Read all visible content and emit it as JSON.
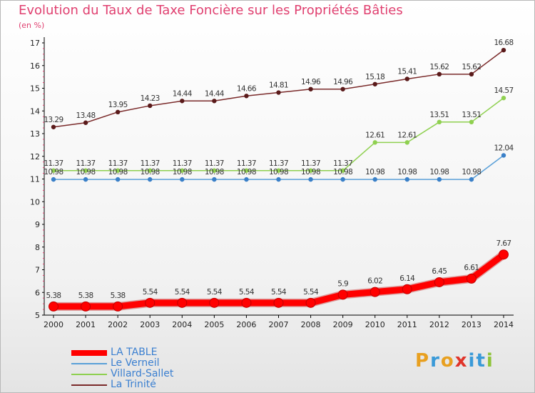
{
  "chart_data": {
    "type": "line",
    "title": "Evolution du Taux de Taxe Foncière sur les Propriétés Bâties",
    "subtitle": "(en %)",
    "xlabel": "",
    "ylabel": "(en %)",
    "categories": [
      "2000",
      "2001",
      "2002",
      "2003",
      "2004",
      "2005",
      "2006",
      "2007",
      "2008",
      "2009",
      "2010",
      "2011",
      "2012",
      "2013",
      "2014"
    ],
    "ylim": [
      5,
      17
    ],
    "yticks": [
      "5",
      "6",
      "7",
      "8",
      "9",
      "10",
      "11",
      "12",
      "13",
      "14",
      "15",
      "16",
      "17"
    ],
    "legend_position": "bottom-left",
    "series": [
      {
        "name": "LA TABLE",
        "color": "#ff0000",
        "values": [
          5.38,
          5.38,
          5.38,
          5.54,
          5.54,
          5.54,
          5.54,
          5.54,
          5.54,
          5.9,
          6.02,
          6.14,
          6.45,
          6.61,
          7.67
        ],
        "labels": [
          "5.38",
          "5.38",
          "5.38",
          "5.54",
          "5.54",
          "5.54",
          "5.54",
          "5.54",
          "5.54",
          "5.9",
          "6.02",
          "6.14",
          "6.45",
          "6.61",
          "7.67"
        ]
      },
      {
        "name": "Le Verneil",
        "color": "#5aa0d8",
        "values": [
          10.98,
          10.98,
          10.98,
          10.98,
          10.98,
          10.98,
          10.98,
          10.98,
          10.98,
          10.98,
          10.98,
          10.98,
          10.98,
          10.98,
          12.04
        ],
        "labels": [
          "10.98",
          "10.98",
          "10.98",
          "10.98",
          "10.98",
          "10.98",
          "10.98",
          "10.98",
          "10.98",
          "10.98",
          "10.98",
          "10.98",
          "10.98",
          "10.98",
          "12.04"
        ]
      },
      {
        "name": "Villard-Sallet",
        "color": "#8fd050",
        "values": [
          11.37,
          11.37,
          11.37,
          11.37,
          11.37,
          11.37,
          11.37,
          11.37,
          11.37,
          11.37,
          12.61,
          12.61,
          13.51,
          13.51,
          14.57
        ],
        "labels": [
          "11.37",
          "11.37",
          "11.37",
          "11.37",
          "11.37",
          "11.37",
          "11.37",
          "11.37",
          "11.37",
          "11.37",
          "12.61",
          "12.61",
          "13.51",
          "13.51",
          "14.57"
        ]
      },
      {
        "name": "La Trinité",
        "color": "#7a2a2a",
        "values": [
          13.29,
          13.48,
          13.95,
          14.23,
          14.44,
          14.44,
          14.66,
          14.81,
          14.96,
          14.96,
          15.18,
          15.41,
          15.62,
          15.62,
          16.68
        ],
        "labels": [
          "13.29",
          "13.48",
          "13.95",
          "14.23",
          "14.44",
          "14.44",
          "14.66",
          "14.81",
          "14.96",
          "14.96",
          "15.18",
          "15.41",
          "15.62",
          "15.62",
          "16.68"
        ]
      }
    ]
  },
  "brand": {
    "letters": [
      "P",
      "r",
      "o",
      "x",
      "i",
      "t",
      "i"
    ],
    "colors": [
      "#e8a020",
      "#3a9ad8",
      "#e8a020",
      "#e0342a",
      "#3a9ad8",
      "#3a9ad8",
      "#8fc43a"
    ]
  }
}
